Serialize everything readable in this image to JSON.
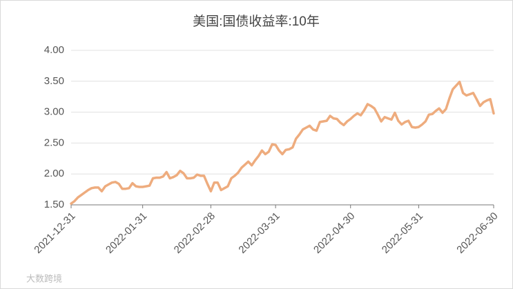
{
  "chart_data": {
    "type": "line",
    "title": "美国:国债收益率:10年",
    "watermark": "大数跨境",
    "categories": [
      "2021-12-31",
      null,
      null,
      null,
      null,
      null,
      null,
      null,
      null,
      null,
      null,
      null,
      null,
      null,
      null,
      null,
      null,
      null,
      null,
      null,
      null,
      "2022-01-31",
      null,
      null,
      null,
      null,
      null,
      null,
      null,
      null,
      null,
      null,
      null,
      null,
      null,
      null,
      null,
      null,
      null,
      null,
      null,
      "2022-02-28",
      null,
      null,
      null,
      null,
      null,
      null,
      null,
      null,
      null,
      null,
      null,
      null,
      null,
      null,
      null,
      null,
      null,
      null,
      "2022-03-31",
      null,
      null,
      null,
      null,
      null,
      null,
      null,
      null,
      null,
      null,
      null,
      null,
      null,
      null,
      null,
      null,
      null,
      null,
      null,
      null,
      null,
      "2022-04-30",
      null,
      null,
      null,
      null,
      null,
      null,
      null,
      null,
      null,
      null,
      null,
      null,
      null,
      null,
      null,
      null,
      null,
      null,
      null,
      "2022-05-31",
      null,
      null,
      null,
      null,
      null,
      null,
      null,
      null,
      null,
      null,
      null,
      null,
      null,
      null,
      null,
      null,
      null,
      null,
      null,
      null,
      null,
      "2022-06-30"
    ],
    "values": [
      1.52,
      1.56,
      1.62,
      1.66,
      1.7,
      1.74,
      1.77,
      1.78,
      1.78,
      1.72,
      1.8,
      1.83,
      1.86,
      1.87,
      1.84,
      1.76,
      1.76,
      1.77,
      1.85,
      1.8,
      1.79,
      1.79,
      1.8,
      1.81,
      1.93,
      1.94,
      1.94,
      1.96,
      2.03,
      1.93,
      1.95,
      1.98,
      2.05,
      2.01,
      1.93,
      1.93,
      1.94,
      1.99,
      1.97,
      1.97,
      1.84,
      1.72,
      1.86,
      1.86,
      1.74,
      1.77,
      1.8,
      1.93,
      1.97,
      2.02,
      2.1,
      2.15,
      2.2,
      2.14,
      2.22,
      2.29,
      2.38,
      2.32,
      2.36,
      2.48,
      2.47,
      2.38,
      2.32,
      2.39,
      2.4,
      2.43,
      2.57,
      2.64,
      2.72,
      2.75,
      2.78,
      2.72,
      2.7,
      2.84,
      2.85,
      2.86,
      2.94,
      2.9,
      2.89,
      2.83,
      2.79,
      2.85,
      2.89,
      2.94,
      2.98,
      2.95,
      3.03,
      3.13,
      3.1,
      3.06,
      2.96,
      2.85,
      2.92,
      2.9,
      2.88,
      2.99,
      2.86,
      2.8,
      2.84,
      2.86,
      2.76,
      2.75,
      2.76,
      2.8,
      2.85,
      2.96,
      2.97,
      3.02,
      3.06,
      2.99,
      3.05,
      3.22,
      3.37,
      3.43,
      3.49,
      3.31,
      3.27,
      3.29,
      3.31,
      3.21,
      3.1,
      3.16,
      3.19,
      3.21,
      2.98
    ],
    "color": "#eeac7e",
    "ylim": [
      1.5,
      4
    ],
    "yticks": [
      {
        "value": 1.5,
        "label": "1.50"
      },
      {
        "value": 2,
        "label": "2.00"
      },
      {
        "value": 2.5,
        "label": "2.50"
      },
      {
        "value": 3,
        "label": "3.00"
      },
      {
        "value": 3.5,
        "label": "3.50"
      },
      {
        "value": 4,
        "label": "4.00"
      }
    ],
    "grid": true
  }
}
